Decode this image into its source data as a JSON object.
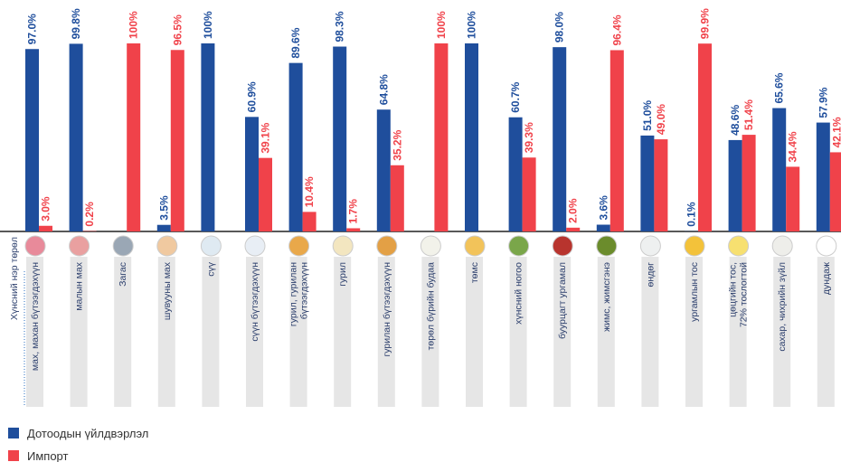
{
  "chart_data": {
    "type": "bar",
    "x_label": "Хүнсний нэр төрөл",
    "categories": [
      "мах, махан бүтээгдэхүүн",
      "малын мах",
      "Загас",
      "шувууны мах",
      "сүү",
      "сүүн бүтээгдэхүүн",
      "гурил, гурилан\nбүтээгдэхүүн",
      "гурил",
      "гурилан бүтээгдэхүүн",
      "төрөл бүрийн будаа",
      "төмс",
      "хүнсний ногоо",
      "буурцагт ургамал",
      "жимс, жимсгэнэ",
      "өндөг",
      "ургамлын тос",
      "цөцгийн тос,\n72% тослогтой",
      "сахар, чихрийн зүйл",
      "дундаж"
    ],
    "ylim": [
      0,
      100
    ],
    "series": [
      {
        "name": "Дотоодын үйлдвэрлэл",
        "color": "#1f4e9c",
        "values": [
          97.0,
          99.8,
          null,
          3.5,
          100,
          60.9,
          89.6,
          98.3,
          64.8,
          null,
          100,
          60.7,
          98.0,
          3.6,
          51.0,
          0.1,
          48.6,
          65.6,
          57.9
        ],
        "value_labels": [
          "97.0%",
          "99.8%",
          null,
          "3.5%",
          "100%",
          "60.9%",
          "89.6%",
          "98.3%",
          "64.8%",
          null,
          "100%",
          "60.7%",
          "98.0%",
          "3.6%",
          "51.0%",
          "0.1%",
          "48.6%",
          "65.6%",
          "57.9%"
        ]
      },
      {
        "name": "Импорт",
        "color": "#f0424a",
        "values": [
          3.0,
          0.2,
          100,
          96.5,
          null,
          39.1,
          10.4,
          1.7,
          35.2,
          100,
          null,
          39.3,
          2.0,
          96.4,
          49.0,
          99.9,
          51.4,
          34.4,
          42.1
        ],
        "value_labels": [
          "3.0%",
          "0.2%",
          "100%",
          "96.5%",
          null,
          "39.1%",
          "10.4%",
          "1.7%",
          "35.2%",
          "100%",
          null,
          "39.3%",
          "2.0%",
          "96.4%",
          "49.0%",
          "99.9%",
          "51.4%",
          "34.4%",
          "42.1%"
        ]
      }
    ]
  }
}
